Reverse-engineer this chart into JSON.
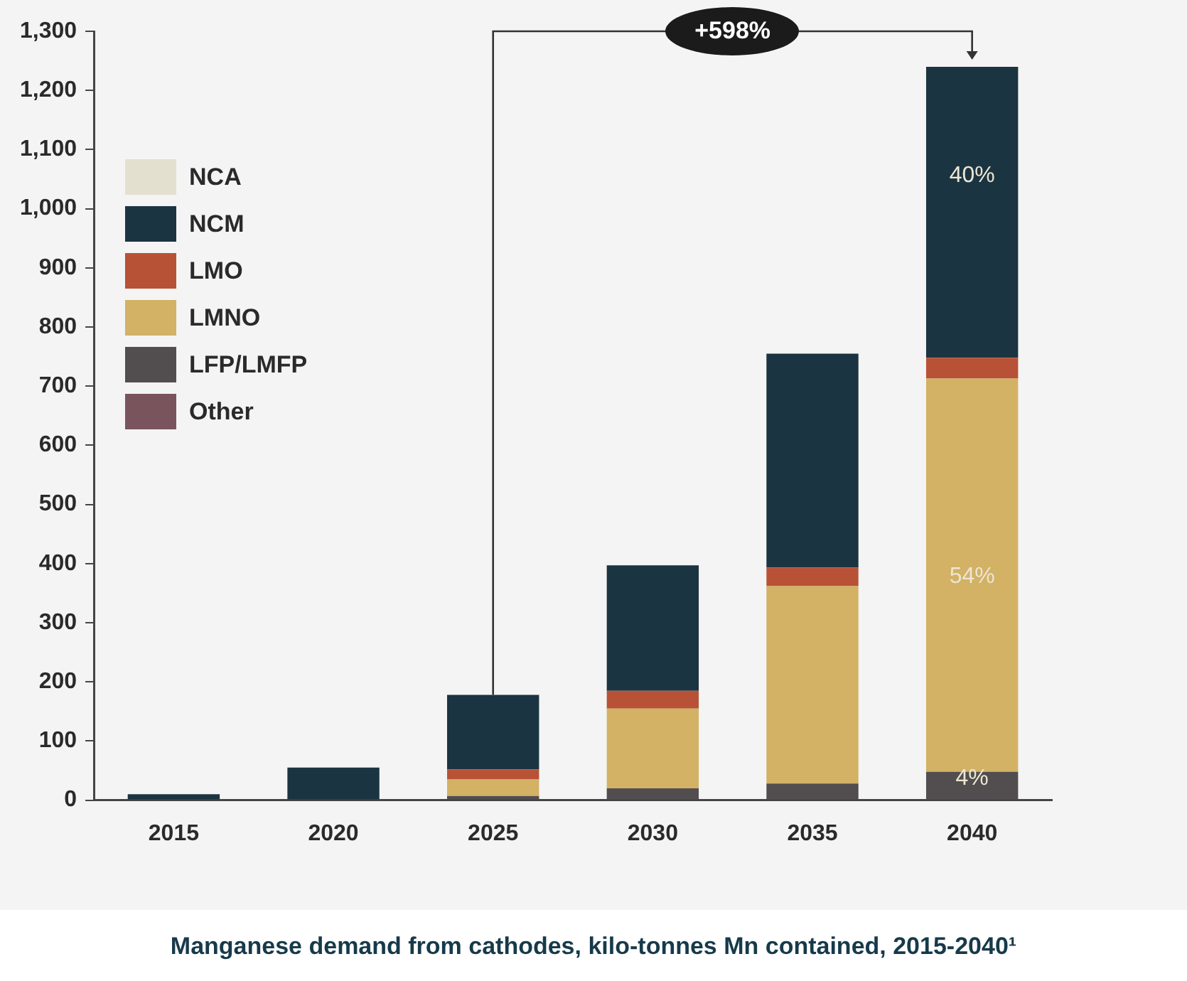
{
  "chart_data": {
    "type": "bar",
    "title": "Manganese demand from cathodes, kilo-tonnes Mn contained, 2015-2040¹",
    "categories": [
      "2015",
      "2020",
      "2025",
      "2030",
      "2035",
      "2040"
    ],
    "stacked": true,
    "series": [
      {
        "name": "Other",
        "color": "#7a545c",
        "values": [
          0,
          0,
          0,
          0,
          0,
          0
        ]
      },
      {
        "name": "LFP/LMFP",
        "color": "#524e4f",
        "values": [
          0,
          0,
          7,
          20,
          28,
          48
        ]
      },
      {
        "name": "LMNO",
        "color": "#d3b165",
        "values": [
          0,
          0,
          28,
          135,
          334,
          665
        ]
      },
      {
        "name": "LMO",
        "color": "#b85236",
        "values": [
          0,
          0,
          17,
          30,
          31,
          35
        ]
      },
      {
        "name": "NCM",
        "color": "#1b3441",
        "values": [
          10,
          55,
          126,
          212,
          362,
          492
        ]
      },
      {
        "name": "NCA",
        "color": "#e4e0cf",
        "values": [
          0,
          0,
          0,
          0,
          0,
          0
        ]
      }
    ],
    "ylim": [
      0,
      1300
    ],
    "yticks": [
      0,
      100,
      200,
      300,
      400,
      500,
      600,
      700,
      800,
      900,
      {
        "value": 1000,
        "label": "1,000"
      },
      {
        "value": 1100,
        "label": "1,100"
      },
      {
        "value": 1200,
        "label": "1,200"
      },
      {
        "value": 1300,
        "label": "1,300"
      }
    ],
    "grid": false,
    "legend": "top left",
    "annotations": [
      "+598%",
      "40%",
      "54%",
      "4%"
    ]
  }
}
